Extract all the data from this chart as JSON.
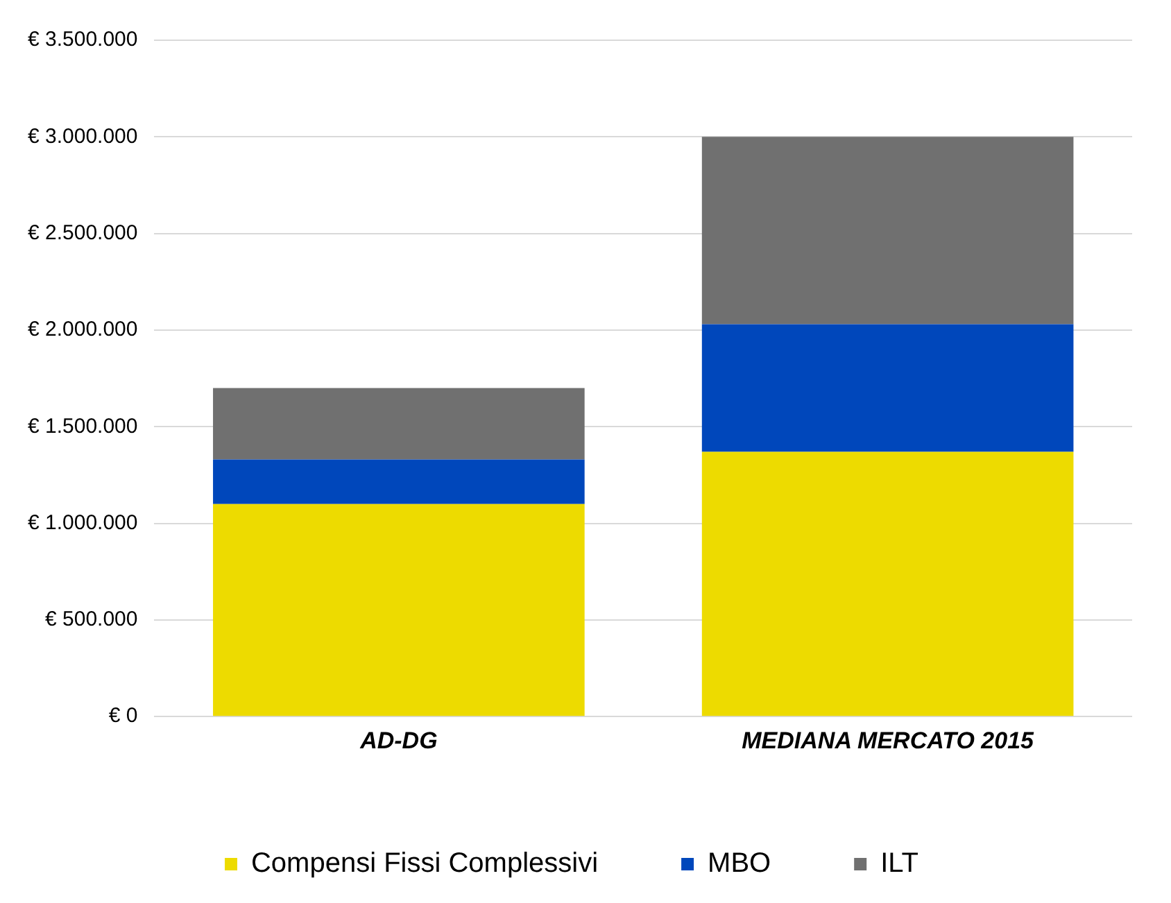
{
  "chart_data": {
    "type": "bar",
    "stacked": true,
    "categories": [
      "AD-DG",
      "MEDIANA MERCATO 2015"
    ],
    "series": [
      {
        "name": "Compensi Fissi Complessivi",
        "color": "#eddb00",
        "values": [
          1100000,
          1370000
        ]
      },
      {
        "name": "MBO",
        "color": "#0047bb",
        "values": [
          230000,
          660000
        ]
      },
      {
        "name": "ILT",
        "color": "#707070",
        "values": [
          370000,
          970000
        ]
      }
    ],
    "ylim": [
      0,
      3500000
    ],
    "yticks": [
      {
        "value": 0,
        "label": "€ 0"
      },
      {
        "value": 500000,
        "label": "€ 500.000"
      },
      {
        "value": 1000000,
        "label": "€ 1.000.000"
      },
      {
        "value": 1500000,
        "label": "€ 1.500.000"
      },
      {
        "value": 2000000,
        "label": "€ 2.000.000"
      },
      {
        "value": 2500000,
        "label": "€ 2.500.000"
      },
      {
        "value": 3000000,
        "label": "€ 3.000.000"
      },
      {
        "value": 3500000,
        "label": "€ 3.500.000"
      }
    ],
    "grid": "y",
    "legend": "bottom"
  }
}
